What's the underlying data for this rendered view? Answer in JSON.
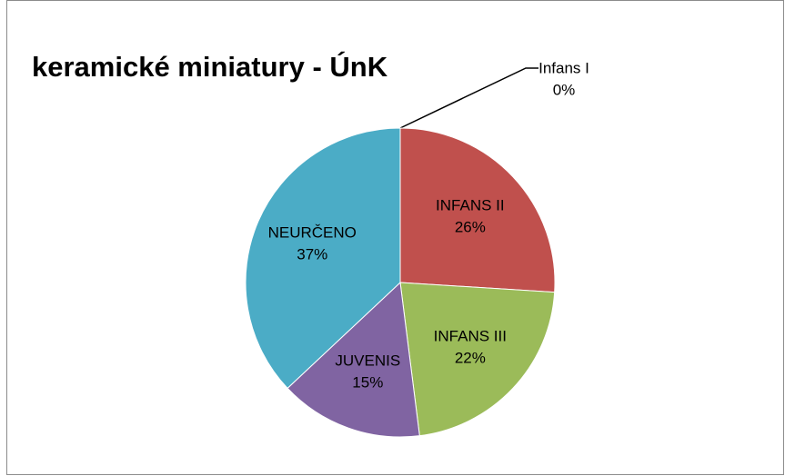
{
  "chart_data": {
    "type": "pie",
    "title": "keramické miniatury - ÚnK",
    "categories": [
      "Infans I",
      "INFANS II",
      "INFANS III",
      "JUVENIS",
      "NEURČENO"
    ],
    "values": [
      0,
      26,
      22,
      15,
      37
    ],
    "value_labels": [
      "0%",
      "26%",
      "22%",
      "15%",
      "37%"
    ],
    "colors": [
      "#4f81bd",
      "#c0504d",
      "#9bbb59",
      "#8064a2",
      "#4bacc6"
    ]
  }
}
